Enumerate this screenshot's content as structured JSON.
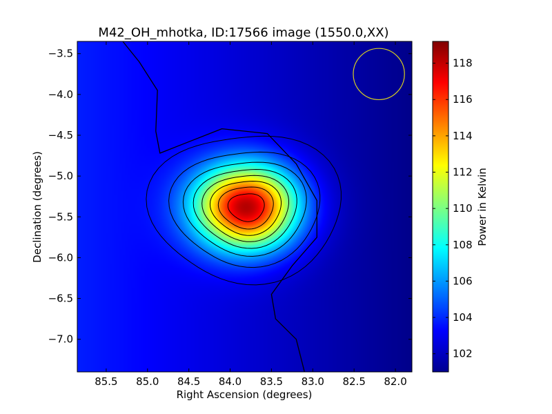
{
  "chart_data": {
    "type": "heatmap",
    "title": "M42_OH_mhotka, ID:17566 image (1550.0,XX)",
    "xlabel": "Right Ascension (degrees)",
    "ylabel": "Declination (degrees)",
    "colorbar_label": "Power in Kelvin",
    "colormap": "jet",
    "x_reversed": true,
    "xlim": [
      85.85,
      81.8
    ],
    "ylim": [
      -7.4,
      -3.35
    ],
    "x_ticks": [
      85.5,
      85.0,
      84.5,
      84.0,
      83.5,
      83.0,
      82.5,
      82.0
    ],
    "x_tick_labels": [
      "85.5",
      "85.0",
      "84.5",
      "84.0",
      "83.5",
      "83.0",
      "82.5",
      "82.0"
    ],
    "y_ticks": [
      -3.5,
      -4.0,
      -4.5,
      -5.0,
      -5.5,
      -6.0,
      -6.5,
      -7.0
    ],
    "y_tick_labels": [
      "−3.5",
      "−4.0",
      "−4.5",
      "−5.0",
      "−5.5",
      "−6.0",
      "−6.5",
      "−7.0"
    ],
    "colorbar_range": [
      101.0,
      119.2
    ],
    "colorbar_ticks": [
      102,
      104,
      106,
      108,
      110,
      112,
      114,
      116,
      118
    ],
    "colorbar_tick_labels": [
      "102",
      "104",
      "106",
      "108",
      "110",
      "112",
      "114",
      "116",
      "118"
    ],
    "source": {
      "ra": 83.8,
      "dec": -5.38,
      "peak_kelvin": 119.2,
      "sigma_ra": 0.43,
      "sigma_dec": 0.36
    },
    "background_kelvin": [
      101.2,
      103.8
    ],
    "contour_levels_kelvin": [
      103.0,
      104.5,
      106.5,
      108.5,
      110.5,
      112.5,
      114.5,
      116.5,
      118.5
    ],
    "beam_circle": {
      "ra": 82.2,
      "dec": -3.75,
      "radius_deg": 0.31,
      "color": "#d8d020"
    }
  }
}
